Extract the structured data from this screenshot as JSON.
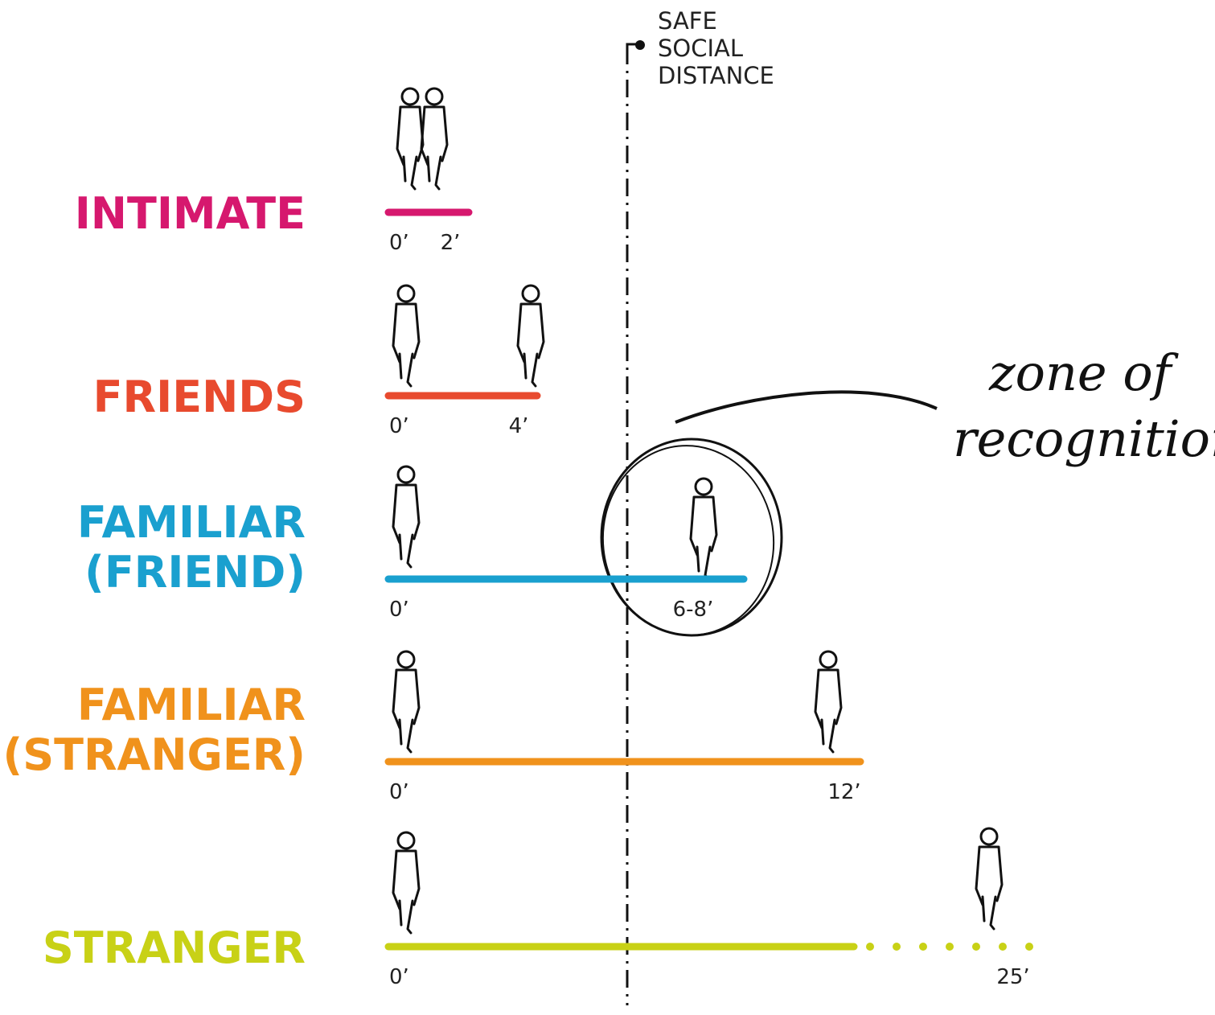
{
  "safe_distance": {
    "lines": [
      "SAFE",
      "SOCIAL",
      "DISTANCE"
    ]
  },
  "zone_annotation": {
    "lines": [
      "zone of",
      "recognition"
    ]
  },
  "rows": [
    {
      "label": [
        "INTIMATE"
      ],
      "color": "#d6186e",
      "start": "0’",
      "end": "2’"
    },
    {
      "label": [
        "FRIENDS"
      ],
      "color": "#e84a2e",
      "start": "0’",
      "end": "4’"
    },
    {
      "label": [
        "FAMILIAR",
        "(FRIEND)"
      ],
      "color": "#1aa0cf",
      "start": "0’",
      "end": "6-8’"
    },
    {
      "label": [
        "FAMILIAR",
        "(STRANGER)"
      ],
      "color": "#f0921c",
      "start": "0’",
      "end": "12’"
    },
    {
      "label": [
        "STRANGER"
      ],
      "color": "#c8d116",
      "start": "0’",
      "end": "25’"
    }
  ]
}
